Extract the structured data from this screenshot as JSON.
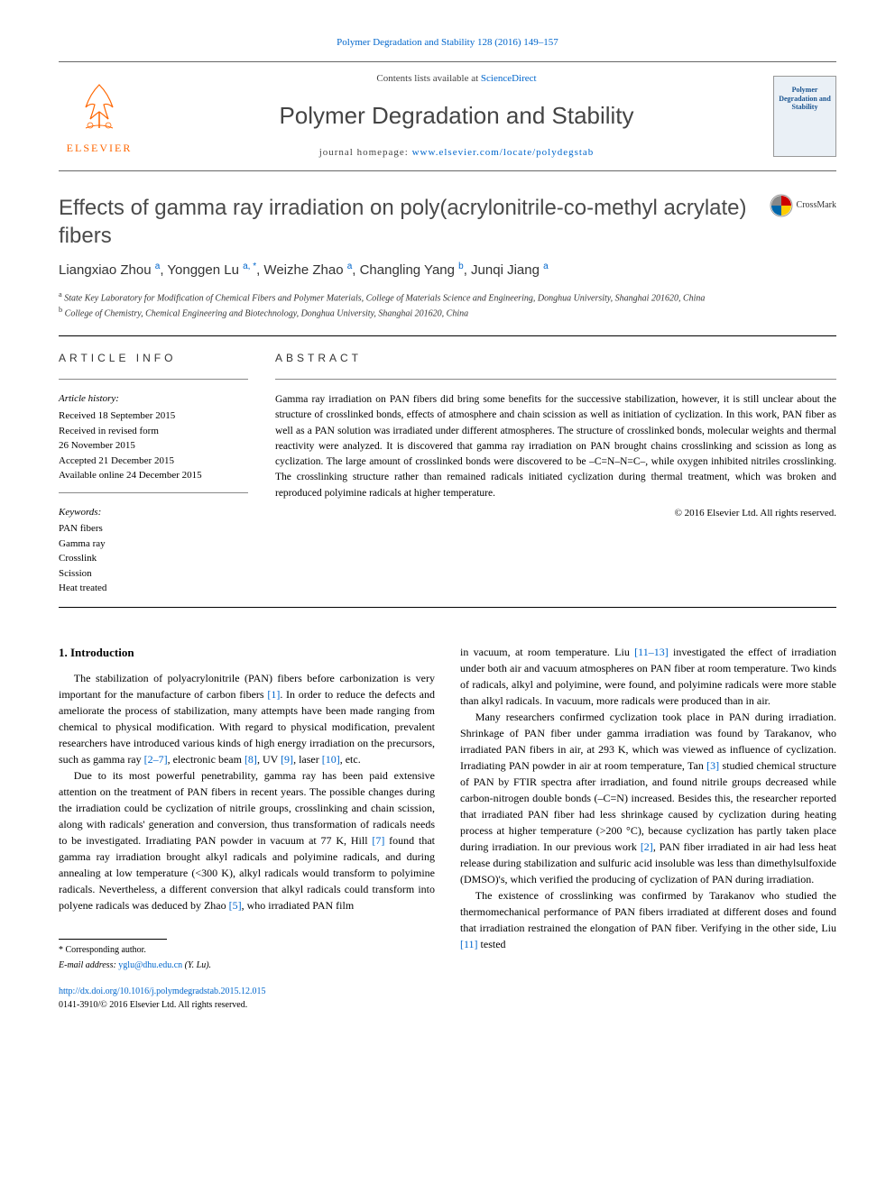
{
  "header": {
    "citation_link": "Polymer Degradation and Stability 128 (2016) 149–157",
    "contents_text": "Contents lists available at ",
    "contents_link": "ScienceDirect",
    "journal_name": "Polymer Degradation and Stability",
    "homepage_prefix": "journal homepage: ",
    "homepage_url": "www.elsevier.com/locate/polydegstab",
    "publisher": "ELSEVIER",
    "cover_text": "Polymer Degradation and Stability"
  },
  "colors": {
    "link": "#0066cc",
    "publisher_orange": "#ff6600",
    "title_grey": "#4a4a4a",
    "text": "#000000",
    "cover_bg": "#eaf0f6",
    "cover_text": "#1a5490"
  },
  "article": {
    "title": "Effects of gamma ray irradiation on poly(acrylonitrile-co-methyl acrylate) fibers",
    "crossmark": "CrossMark",
    "authors_html": "Liangxiao Zhou <sup>a</sup>, Yonggen Lu <sup>a, *</sup>, Weizhe Zhao <sup>a</sup>, Changling Yang <sup>b</sup>, Junqi Jiang <sup>a</sup>",
    "affiliations": {
      "a": "State Key Laboratory for Modification of Chemical Fibers and Polymer Materials, College of Materials Science and Engineering, Donghua University, Shanghai 201620, China",
      "b": "College of Chemistry, Chemical Engineering and Biotechnology, Donghua University, Shanghai 201620, China"
    }
  },
  "info": {
    "heading": "ARTICLE INFO",
    "history_label": "Article history:",
    "history": [
      "Received 18 September 2015",
      "Received in revised form",
      "26 November 2015",
      "Accepted 21 December 2015",
      "Available online 24 December 2015"
    ],
    "keywords_label": "Keywords:",
    "keywords": [
      "PAN fibers",
      "Gamma ray",
      "Crosslink",
      "Scission",
      "Heat treated"
    ]
  },
  "abstract": {
    "heading": "ABSTRACT",
    "text": "Gamma ray irradiation on PAN fibers did bring some benefits for the successive stabilization, however, it is still unclear about the structure of crosslinked bonds, effects of atmosphere and chain scission as well as initiation of cyclization. In this work, PAN fiber as well as a PAN solution was irradiated under different atmospheres. The structure of crosslinked bonds, molecular weights and thermal reactivity were analyzed. It is discovered that gamma ray irradiation on PAN brought chains crosslinking and scission as long as cyclization. The large amount of crosslinked bonds were discovered to be –C=N–N=C–, while oxygen inhibited nitriles crosslinking. The crosslinking structure rather than remained radicals initiated cyclization during thermal treatment, which was broken and reproduced polyimine radicals at higher temperature.",
    "copyright": "© 2016 Elsevier Ltd. All rights reserved."
  },
  "body": {
    "section_heading": "1. Introduction",
    "left_paragraphs": [
      "The stabilization of polyacrylonitrile (PAN) fibers before carbonization is very important for the manufacture of carbon fibers <span class=\"cite\">[1]</span>. In order to reduce the defects and ameliorate the process of stabilization, many attempts have been made ranging from chemical to physical modification. With regard to physical modification, prevalent researchers have introduced various kinds of high energy irradiation on the precursors, such as gamma ray <span class=\"cite\">[2–7]</span>, electronic beam <span class=\"cite\">[8]</span>, UV <span class=\"cite\">[9]</span>, laser <span class=\"cite\">[10]</span>, etc.",
      "Due to its most powerful penetrability, gamma ray has been paid extensive attention on the treatment of PAN fibers in recent years. The possible changes during the irradiation could be cyclization of nitrile groups, crosslinking and chain scission, along with radicals' generation and conversion, thus transformation of radicals needs to be investigated. Irradiating PAN powder in vacuum at 77 K, Hill <span class=\"cite\">[7]</span> found that gamma ray irradiation brought alkyl radicals and polyimine radicals, and during annealing at low temperature (<300 K), alkyl radicals would transform to polyimine radicals. Nevertheless, a different conversion that alkyl radicals could transform into polyene radicals was deduced by Zhao <span class=\"cite\">[5]</span>, who irradiated PAN film"
    ],
    "right_paragraphs": [
      "in vacuum, at room temperature. Liu <span class=\"cite\">[11–13]</span> investigated the effect of irradiation under both air and vacuum atmospheres on PAN fiber at room temperature. Two kinds of radicals, alkyl and polyimine, were found, and polyimine radicals were more stable than alkyl radicals. In vacuum, more radicals were produced than in air.",
      "Many researchers confirmed cyclization took place in PAN during irradiation. Shrinkage of PAN fiber under gamma irradiation was found by Tarakanov, who irradiated PAN fibers in air, at 293 K, which was viewed as influence of cyclization. Irradiating PAN powder in air at room temperature, Tan <span class=\"cite\">[3]</span> studied chemical structure of PAN by FTIR spectra after irradiation, and found nitrile groups decreased while carbon-nitrogen double bonds (–C=N) increased. Besides this, the researcher reported that irradiated PAN fiber had less shrinkage caused by cyclization during heating process at higher temperature (>200 °C), because cyclization has partly taken place during irradiation. In our previous work <span class=\"cite\">[2]</span>, PAN fiber irradiated in air had less heat release during stabilization and sulfuric acid insoluble was less than dimethylsulfoxide (DMSO)'s, which verified the producing of cyclization of PAN during irradiation.",
      "The existence of crosslinking was confirmed by Tarakanov who studied the thermomechanical performance of PAN fibers irradiated at different doses and found that irradiation restrained the elongation of PAN fiber. Verifying in the other side, Liu <span class=\"cite\">[11]</span> tested"
    ]
  },
  "footer": {
    "corresponding_label": "* Corresponding author.",
    "email_label": "E-mail address: ",
    "email": "yglu@dhu.edu.cn",
    "email_name": " (Y. Lu).",
    "doi": "http://dx.doi.org/10.1016/j.polymdegradstab.2015.12.015",
    "issn_line": "0141-3910/© 2016 Elsevier Ltd. All rights reserved."
  }
}
